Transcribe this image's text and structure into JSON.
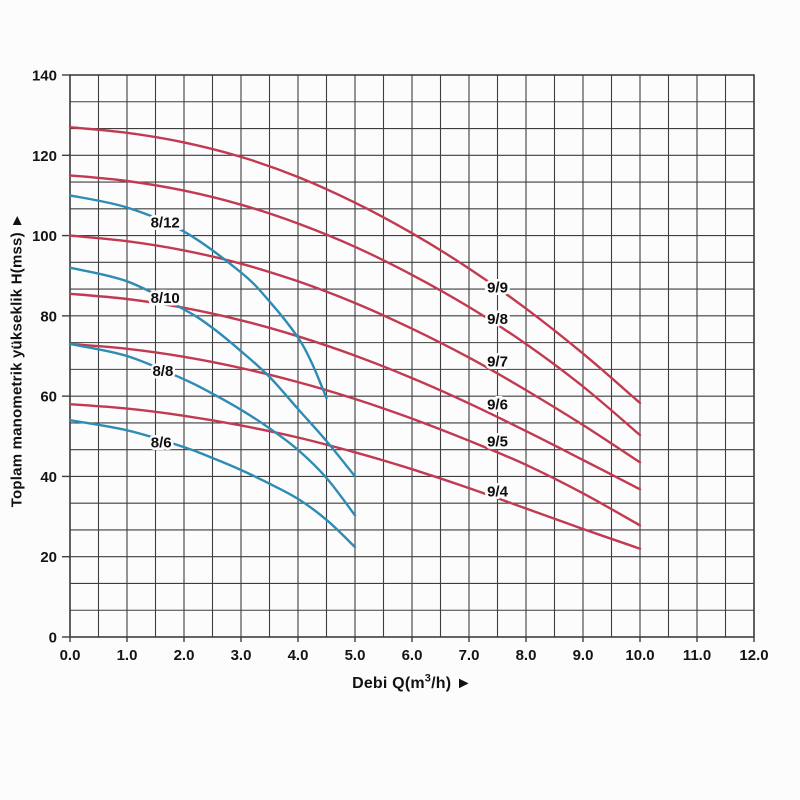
{
  "page": {
    "background": "#fcfcfc"
  },
  "chart_data": {
    "type": "line",
    "title": "",
    "ylabel": "Toplam manometrik yükseklik H(mss) ►",
    "xlabel_parts": {
      "pre": "Debi Q(m",
      "sup": "3",
      "post": "/h) ►"
    },
    "x_range": [
      0,
      12
    ],
    "y_range": [
      0,
      140
    ],
    "x_major_ticks": [
      0,
      1,
      2,
      3,
      4,
      5,
      6,
      7,
      8,
      9,
      10,
      11,
      12
    ],
    "x_tick_labels": [
      "0.0",
      "1.0",
      "2.0",
      "3.0",
      "4.0",
      "5.0",
      "6.0",
      "7.0",
      "8.0",
      "9.0",
      "10.0",
      "11.0",
      "12.0"
    ],
    "y_major_ticks": [
      0,
      20,
      40,
      60,
      80,
      100,
      120,
      140
    ],
    "x_minor_step": 0.5,
    "y_grid_rows": 21,
    "grid": true,
    "grid_color": "#3e3e3e",
    "axis_text_color": "#141414",
    "legend_position": "none",
    "colors": {
      "red": "#c23a51",
      "blue": "#2e8cb4"
    },
    "series": [
      {
        "name": "9/9",
        "color": "#c23a51",
        "label_pos": [
          7.5,
          87.2
        ],
        "points": [
          [
            0,
            127
          ],
          [
            1,
            125.6
          ],
          [
            2,
            123.2
          ],
          [
            3,
            119.6
          ],
          [
            4,
            114.6
          ],
          [
            5,
            108.2
          ],
          [
            6,
            100.6
          ],
          [
            7,
            91.8
          ],
          [
            8,
            81.8
          ],
          [
            9,
            70.6
          ],
          [
            10,
            58.3
          ]
        ]
      },
      {
        "name": "9/8",
        "color": "#c23a51",
        "label_pos": [
          7.5,
          79.4
        ],
        "points": [
          [
            0,
            115
          ],
          [
            1,
            113.6
          ],
          [
            2,
            111.2
          ],
          [
            3,
            107.7
          ],
          [
            4,
            103
          ],
          [
            5,
            97.2
          ],
          [
            6,
            90.2
          ],
          [
            7,
            82.2
          ],
          [
            8,
            73
          ],
          [
            9,
            62.4
          ],
          [
            10,
            50.3
          ]
        ]
      },
      {
        "name": "9/7",
        "color": "#c23a51",
        "label_pos": [
          7.5,
          68.8
        ],
        "points": [
          [
            0,
            100
          ],
          [
            1,
            98.6
          ],
          [
            2,
            96.3
          ],
          [
            3,
            93
          ],
          [
            4,
            88.6
          ],
          [
            5,
            83.2
          ],
          [
            6,
            76.8
          ],
          [
            7,
            69.6
          ],
          [
            8,
            61.5
          ],
          [
            9,
            52.8
          ],
          [
            10,
            43.5
          ]
        ]
      },
      {
        "name": "9/6",
        "color": "#c23a51",
        "label_pos": [
          7.5,
          58.0
        ],
        "points": [
          [
            0,
            85.5
          ],
          [
            1,
            84.2
          ],
          [
            2,
            82
          ],
          [
            3,
            78.9
          ],
          [
            4,
            74.9
          ],
          [
            5,
            70.1
          ],
          [
            6,
            64.5
          ],
          [
            7,
            58.2
          ],
          [
            8,
            51.3
          ],
          [
            9,
            44.1
          ],
          [
            10,
            36.8
          ]
        ]
      },
      {
        "name": "9/5",
        "color": "#c23a51",
        "label_pos": [
          7.5,
          48.8
        ],
        "points": [
          [
            0,
            73
          ],
          [
            1,
            71.8
          ],
          [
            2,
            69.8
          ],
          [
            3,
            67
          ],
          [
            4,
            63.5
          ],
          [
            5,
            59.3
          ],
          [
            6,
            54.4
          ],
          [
            7,
            48.9
          ],
          [
            8,
            42.9
          ],
          [
            9,
            35.8
          ],
          [
            10,
            27.8
          ]
        ]
      },
      {
        "name": "9/4",
        "color": "#c23a51",
        "label_pos": [
          7.5,
          36.4
        ],
        "points": [
          [
            0,
            58
          ],
          [
            1,
            56.9
          ],
          [
            2,
            55.1
          ],
          [
            3,
            52.7
          ],
          [
            4,
            49.7
          ],
          [
            5,
            46
          ],
          [
            6,
            41.8
          ],
          [
            7,
            37.1
          ],
          [
            8,
            32
          ],
          [
            9,
            26.9
          ],
          [
            10,
            22
          ]
        ]
      },
      {
        "name": "8/12",
        "color": "#2e8cb4",
        "label_pos": [
          1.67,
          103.4
        ],
        "points": [
          [
            0,
            110
          ],
          [
            1,
            107
          ],
          [
            2,
            101
          ],
          [
            3,
            90.8
          ],
          [
            3.5,
            83.6
          ],
          [
            4,
            74.6
          ],
          [
            4.25,
            68
          ],
          [
            4.5,
            59.5
          ]
        ]
      },
      {
        "name": "8/10",
        "color": "#2e8cb4",
        "label_pos": [
          1.67,
          84.6
        ],
        "points": [
          [
            0,
            92
          ],
          [
            1,
            88.6
          ],
          [
            2,
            81.6
          ],
          [
            2.5,
            77
          ],
          [
            3,
            71.2
          ],
          [
            3.5,
            64.8
          ],
          [
            4,
            56.8
          ],
          [
            4.5,
            48.8
          ],
          [
            5,
            40
          ]
        ]
      },
      {
        "name": "8/8",
        "color": "#2e8cb4",
        "label_pos": [
          1.63,
          66.4
        ],
        "points": [
          [
            0,
            73
          ],
          [
            1,
            70
          ],
          [
            2,
            64.2
          ],
          [
            2.5,
            60.6
          ],
          [
            3,
            56.6
          ],
          [
            3.5,
            52
          ],
          [
            4,
            46.6
          ],
          [
            4.5,
            39.6
          ],
          [
            5,
            30.3
          ]
        ]
      },
      {
        "name": "8/6",
        "color": "#2e8cb4",
        "label_pos": [
          1.6,
          48.6
        ],
        "points": [
          [
            0,
            54
          ],
          [
            1,
            51.5
          ],
          [
            2,
            47.3
          ],
          [
            2.5,
            44.6
          ],
          [
            3,
            41.6
          ],
          [
            3.5,
            38.2
          ],
          [
            4,
            34.4
          ],
          [
            4.5,
            29.2
          ],
          [
            5,
            22.4
          ]
        ]
      }
    ]
  }
}
